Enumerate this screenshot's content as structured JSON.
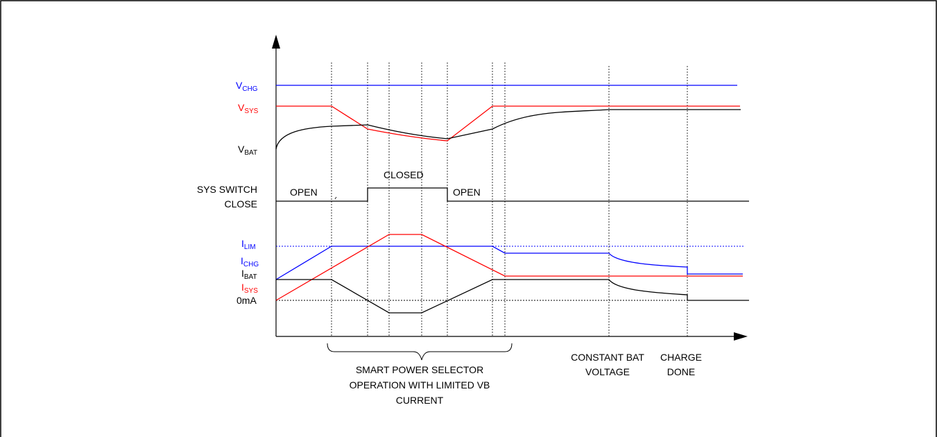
{
  "colors": {
    "blue": "#0000ff",
    "red": "#ff0000",
    "black": "#000000",
    "frame": "#000000"
  },
  "signals": {
    "vchg": {
      "main": "V",
      "sub": "CHG"
    },
    "vsys": {
      "main": "V",
      "sub": "SYS"
    },
    "vbat": {
      "main": "V",
      "sub": "BAT"
    },
    "ilim": {
      "main": "I",
      "sub": "LIM"
    },
    "ichg": {
      "main": "I",
      "sub": "CHG"
    },
    "ibat": {
      "main": "I",
      "sub": "BAT"
    },
    "isys": {
      "main": "I",
      "sub": "SYS"
    },
    "zero_ma": "0mA"
  },
  "switch": {
    "label_line1": "SYS SWITCH",
    "label_line2": "CLOSE",
    "open_1": "OPEN",
    "closed": "CLOSED",
    "open_2": "OPEN"
  },
  "phases": {
    "smart_power": [
      "SMART POWER SELECTOR",
      "OPERATION WITH LIMITED VB",
      "CURRENT"
    ],
    "constant_bat": [
      "CONSTANT BAT",
      "VOLTAGE"
    ],
    "charge_done": [
      "CHARGE",
      "DONE"
    ]
  }
}
